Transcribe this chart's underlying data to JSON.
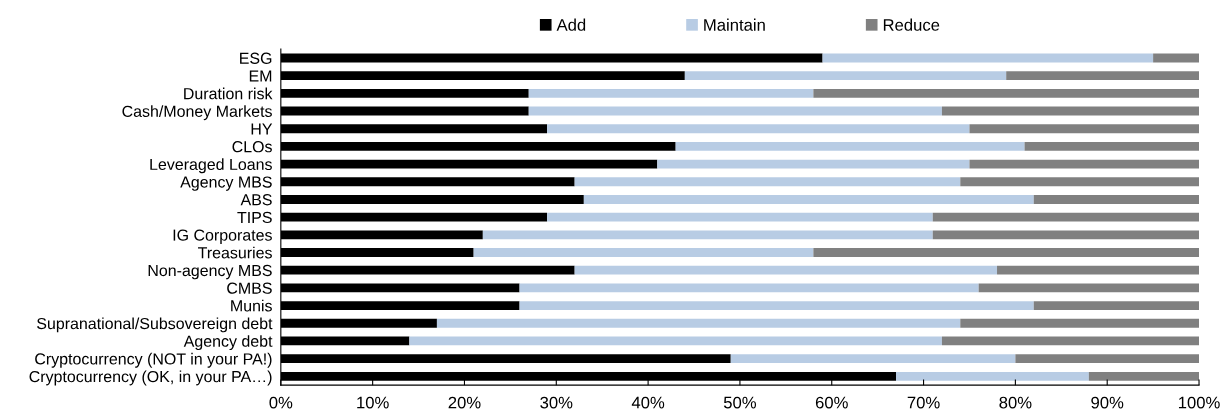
{
  "chart_data": {
    "type": "bar",
    "orientation": "horizontal",
    "stacked": true,
    "legend": "top",
    "grid": false,
    "categories": [
      "ESG",
      "EM",
      "Duration risk",
      "Cash/Money Markets",
      "HY",
      "CLOs",
      "Leveraged Loans",
      "Agency MBS",
      "ABS",
      "TIPS",
      "IG Corporates",
      "Treasuries",
      "Non-agency MBS",
      "CMBS",
      "Munis",
      "Supranational/Subsovereign debt",
      "Agency debt",
      "Cryptocurrency (NOT in your PA!)",
      "Cryptocurrency (OK, in your PA…)"
    ],
    "series": [
      {
        "name": "Add",
        "color": "#000000",
        "values": [
          59,
          44,
          27,
          27,
          29,
          43,
          41,
          32,
          33,
          29,
          22,
          21,
          32,
          26,
          26,
          17,
          14,
          49,
          67
        ]
      },
      {
        "name": "Maintain",
        "color": "#b8cce4",
        "values": [
          36,
          35,
          31,
          45,
          46,
          38,
          34,
          42,
          49,
          42,
          49,
          37,
          46,
          50,
          56,
          57,
          58,
          31,
          21
        ]
      },
      {
        "name": "Reduce",
        "color": "#808080",
        "values": [
          5,
          21,
          42,
          28,
          25,
          19,
          25,
          26,
          18,
          29,
          29,
          42,
          22,
          24,
          18,
          26,
          28,
          20,
          12
        ]
      }
    ],
    "xlim": [
      0,
      100
    ],
    "xticks": [
      {
        "value": 0,
        "label": "0%"
      },
      {
        "value": 10,
        "label": "10%"
      },
      {
        "value": 20,
        "label": "20%"
      },
      {
        "value": 30,
        "label": "30%"
      },
      {
        "value": 40,
        "label": "40%"
      },
      {
        "value": 50,
        "label": "50%"
      },
      {
        "value": 60,
        "label": "60%"
      },
      {
        "value": 70,
        "label": "70%"
      },
      {
        "value": 80,
        "label": "80%"
      },
      {
        "value": 90,
        "label": "90%"
      },
      {
        "value": 100,
        "label": "100%"
      }
    ]
  }
}
